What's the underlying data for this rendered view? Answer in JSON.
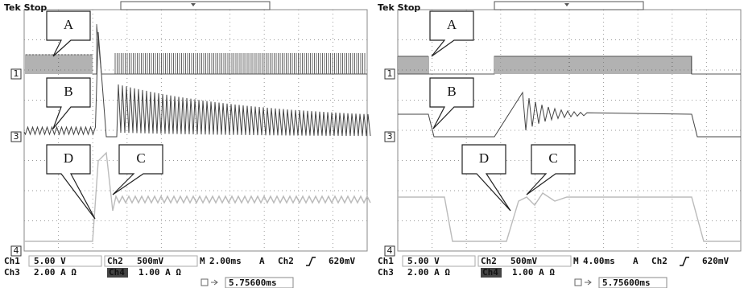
{
  "panels": [
    {
      "header": "Tek Stop",
      "callouts": {
        "a": "A",
        "b": "B",
        "c": "C",
        "d": "D"
      },
      "markers": [
        "1",
        "3",
        "4"
      ],
      "readout": {
        "ch1_label": "Ch1",
        "ch1_scale": "5.00 V",
        "ch2_label": "Ch2",
        "ch2_scale": "500mV",
        "timebase_label": "M",
        "timebase": "2.00ms",
        "trigger_mode": "A",
        "trigger_source": "Ch2",
        "trigger_level": "620mV",
        "ch3_label": "Ch3",
        "ch3_scale": "2.00 A Ω",
        "ch4_label": "Ch4",
        "ch4_scale": "1.00 A Ω",
        "trigger_position": "5.75600ms"
      }
    },
    {
      "header": "Tek Stop",
      "callouts": {
        "a": "A",
        "b": "B",
        "c": "C",
        "d": "D"
      },
      "markers": [
        "1",
        "3",
        "4"
      ],
      "readout": {
        "ch1_label": "Ch1",
        "ch1_scale": "5.00 V",
        "ch2_label": "Ch2",
        "ch2_scale": "500mV",
        "timebase_label": "M",
        "timebase": "4.00ms",
        "trigger_mode": "A",
        "trigger_source": "Ch2",
        "trigger_level": "620mV",
        "ch3_label": "Ch3",
        "ch3_scale": "2.00 A Ω",
        "ch4_label": "Ch4",
        "ch4_scale": "1.00 A Ω",
        "trigger_position": "5.75600ms"
      }
    }
  ]
}
